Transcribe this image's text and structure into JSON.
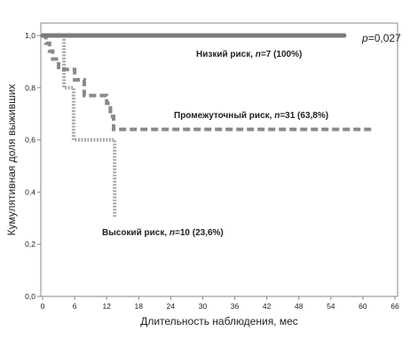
{
  "chart_data": {
    "type": "line",
    "title": "",
    "xlabel": "Длительность наблюдения, мес",
    "ylabel": "Кумулятивная доля выживших",
    "xlim": [
      0,
      66
    ],
    "ylim": [
      0,
      1.0
    ],
    "x_ticks": [
      0,
      6,
      12,
      18,
      24,
      30,
      36,
      42,
      48,
      54,
      60,
      66
    ],
    "y_ticks": [
      {
        "value": 0.0,
        "label": "0,0"
      },
      {
        "value": 0.2,
        "label": "0,2"
      },
      {
        "value": 0.4,
        "label": "0,4"
      },
      {
        "value": 0.6,
        "label": "0,6"
      },
      {
        "value": 0.8,
        "label": "0,8"
      },
      {
        "value": 1.0,
        "label": "1,0"
      }
    ],
    "grid": false,
    "p_value_text": "p=0,027",
    "series": [
      {
        "group": "low",
        "label": {
          "prefix": "Низкий риск, ",
          "n": "n",
          "suffix": "=7  (100%)"
        },
        "color": "#7a7a7a",
        "style": "solid",
        "steps": [
          [
            0,
            1.0
          ],
          [
            56.5,
            1.0
          ]
        ]
      },
      {
        "group": "intermediate",
        "label": {
          "prefix": "Промежуточный риск, ",
          "n": "n",
          "suffix": "=31  (63,8%)"
        },
        "color": "#8a8a8a",
        "style": "dashed",
        "steps": [
          [
            0,
            1.0
          ],
          [
            0.6,
            0.97
          ],
          [
            1.3,
            0.94
          ],
          [
            1.9,
            0.91
          ],
          [
            3.0,
            0.87
          ],
          [
            6.0,
            0.83
          ],
          [
            7.8,
            0.77
          ],
          [
            12.0,
            0.74
          ],
          [
            12.7,
            0.69
          ],
          [
            13.3,
            0.64
          ],
          [
            62,
            0.64
          ]
        ]
      },
      {
        "group": "high",
        "label": {
          "prefix": "Высокий риск, ",
          "n": "n",
          "suffix": "=10  (23,6%)"
        },
        "color": "#a8a8a8",
        "style": "dotted",
        "steps": [
          [
            0,
            1.0
          ],
          [
            4.0,
            0.8
          ],
          [
            5.8,
            0.6
          ],
          [
            13.5,
            0.3
          ]
        ]
      }
    ]
  }
}
